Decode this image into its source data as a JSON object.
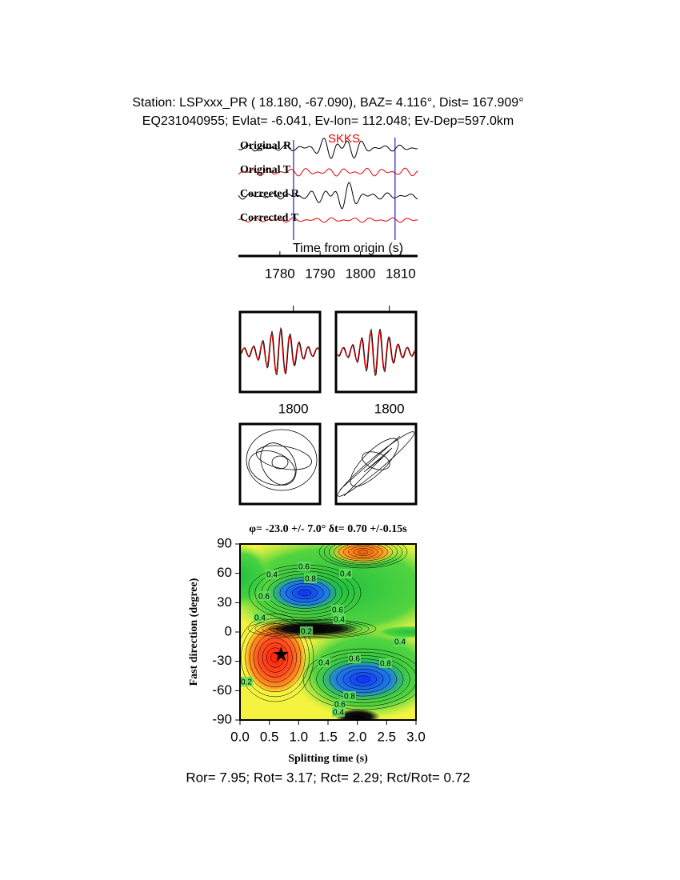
{
  "header": {
    "line1": "Station: LSPxxx_PR (  18.180,  -67.090), BAZ=    4.116°, Dist=  167.909°",
    "line2": "EQ231040955; Evlat=  -6.041, Ev-lon= 112.048; Ev-Dep=597.0km"
  },
  "waveforms": {
    "phase": "SKKS",
    "traces": [
      "Original R",
      "Original T",
      "Corrected R",
      "Corrected T"
    ],
    "xlabel": "Time from origin (s)",
    "xlim": [
      1769.7,
      1814.2
    ],
    "xticks": [
      1780,
      1790,
      1800,
      1810
    ],
    "window": [
      1783.4,
      1808.6
    ]
  },
  "panels": [
    {
      "xlim": [
        1790,
        1805
      ],
      "xticks": [
        1800
      ]
    },
    {
      "xlim": [
        1790,
        1805
      ],
      "xticks": [
        1800
      ]
    }
  ],
  "grid_search": {
    "title": "φ= -23.0 +/- 7.0° δt= 0.70 +/-0.15s",
    "xlabel": "Splitting time (s)",
    "ylabel": "Fast direction (degree)",
    "xlim": [
      0,
      3
    ],
    "ylim": [
      -90,
      90
    ],
    "xticks": [
      {
        "value": 0,
        "label": "0.0"
      },
      {
        "value": 0.5,
        "label": "0.5"
      },
      {
        "value": 1,
        "label": "1.0"
      },
      {
        "value": 1.5,
        "label": "1.5"
      },
      {
        "value": 2,
        "label": "2.0"
      },
      {
        "value": 2.5,
        "label": "2.5"
      },
      {
        "value": 3,
        "label": "3.0"
      }
    ],
    "yticks": [
      -90,
      -60,
      -30,
      0,
      30,
      60,
      90
    ],
    "best": {
      "x": 0.7,
      "y": -23
    },
    "contour_labels": [
      "0.4",
      "0.6",
      "0.8",
      "0.4",
      "0.6",
      "0.4",
      "0.6",
      "0.4",
      "0.2",
      "0.4",
      "0.4",
      "0.6",
      "0.8",
      "0.8",
      "0.6",
      "0.4",
      "0.2"
    ]
  },
  "footer": "Ror= 7.95; Rot= 3.17; Rct= 2.29; Rct/Rot= 0.72"
}
